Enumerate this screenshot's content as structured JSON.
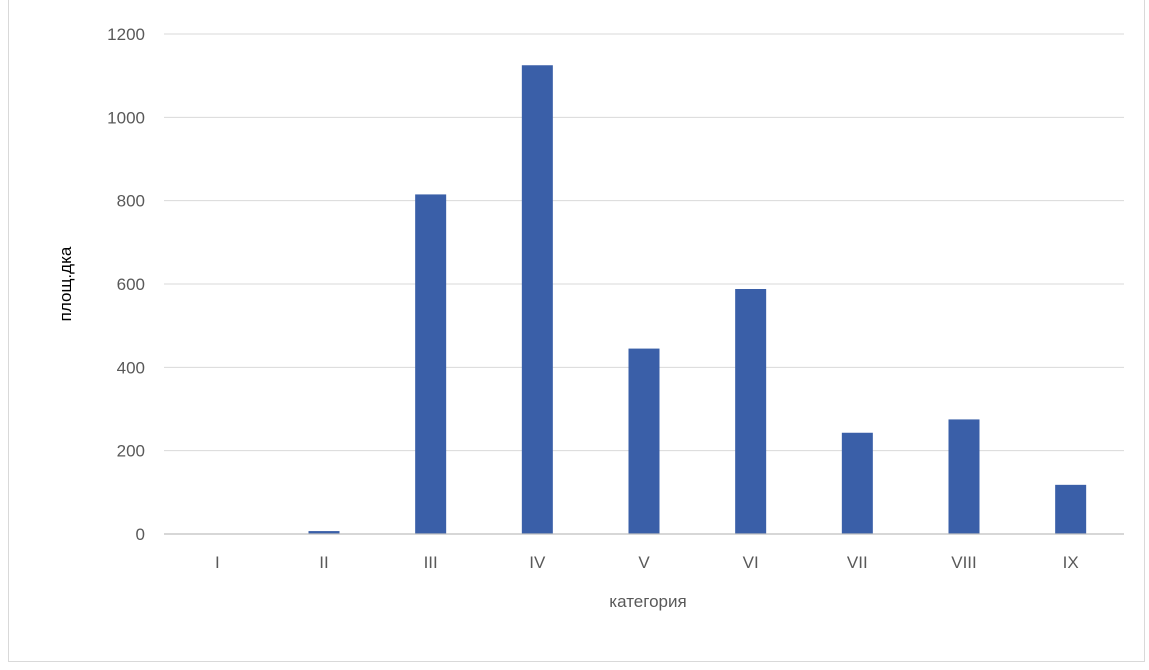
{
  "chart_data": {
    "type": "bar",
    "title": "",
    "xlabel": "категория",
    "ylabel": "площ.дка",
    "categories": [
      "I",
      "II",
      "III",
      "IV",
      "V",
      "VI",
      "VII",
      "VIII",
      "IX"
    ],
    "values": [
      0,
      7,
      815,
      1125,
      445,
      588,
      243,
      275,
      118
    ],
    "ylim": [
      0,
      1200
    ],
    "yticks": [
      0,
      200,
      400,
      600,
      800,
      1000,
      1200
    ],
    "grid": true,
    "legend": "none",
    "bar_color": "#3a5fa8",
    "grid_color": "#d9d9d9",
    "axis_color": "#bfbfbf",
    "tick_label_color": "#595959"
  }
}
